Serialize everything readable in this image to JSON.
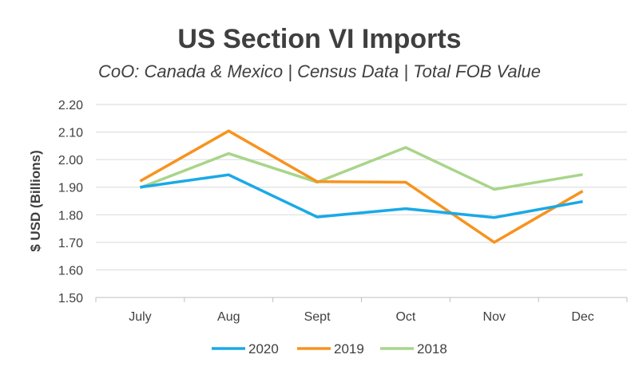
{
  "chart_data": {
    "type": "line",
    "title": "US Section VI Imports",
    "subtitle": "CoO: Canada & Mexico | Census Data | Total FOB Value",
    "xlabel": "",
    "ylabel": "$ USD (Billions)",
    "categories": [
      "July",
      "Aug",
      "Sept",
      "Oct",
      "Nov",
      "Dec"
    ],
    "ylim": [
      1.5,
      2.2
    ],
    "yticks": [
      "1.50",
      "1.60",
      "1.70",
      "1.80",
      "1.90",
      "2.00",
      "2.10",
      "2.20"
    ],
    "grid": true,
    "legend_position": "bottom",
    "series": [
      {
        "name": "2020",
        "color": "#1aa9e6",
        "values": [
          1.9,
          1.945,
          1.792,
          1.822,
          1.79,
          1.848
        ]
      },
      {
        "name": "2019",
        "color": "#f7931e",
        "values": [
          1.922,
          2.104,
          1.92,
          1.918,
          1.7,
          1.886
        ]
      },
      {
        "name": "2018",
        "color": "#a9d58a",
        "values": [
          1.898,
          2.022,
          1.918,
          2.044,
          1.892,
          1.946
        ]
      }
    ]
  }
}
